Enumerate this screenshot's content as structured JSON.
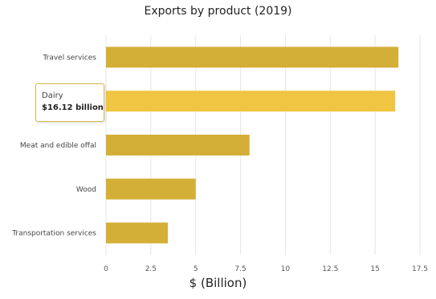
{
  "chart_data": {
    "type": "bar",
    "orientation": "horizontal",
    "title": "Exports by product (2019)",
    "xlabel": "$ (Billion)",
    "ylabel": "",
    "categories": [
      "Travel services",
      "Dairy",
      "Meat and edible offal",
      "Wood",
      "Transportation services"
    ],
    "values": [
      16.3,
      16.12,
      8.0,
      5.0,
      3.45
    ],
    "xlim": [
      0,
      17.5
    ],
    "xticks": [
      "0",
      "2.5",
      "5",
      "7.5",
      "10",
      "12.5",
      "15",
      "17.5"
    ],
    "grid": true,
    "colors": {
      "bar": "#d4af37",
      "highlight": "#f0c542",
      "tooltip_border": "#d9b84a"
    },
    "highlighted_index": 1,
    "tooltip": {
      "name": "Dairy",
      "value": "$16.12 billion"
    }
  }
}
